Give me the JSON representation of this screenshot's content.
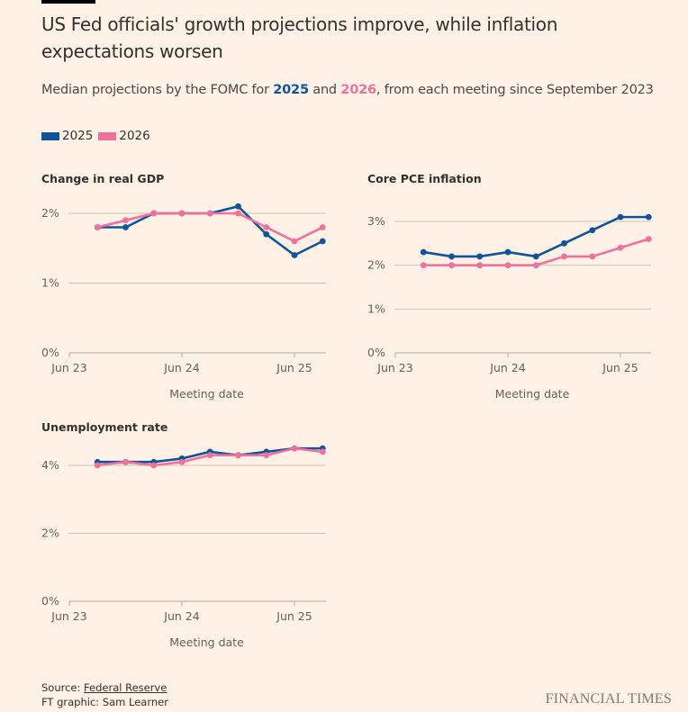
{
  "header": {
    "title": "US Fed officials' growth projections improve, while inflation expectations worsen",
    "subtitle_pre": "Median projections by the FOMC for ",
    "subtitle_2025": "2025",
    "subtitle_and": " and ",
    "subtitle_2026": "2026",
    "subtitle_post": ", from each meeting since September 2023"
  },
  "legend": [
    {
      "label": "2025",
      "color": "#0f5499"
    },
    {
      "label": "2026",
      "color": "#f2709c"
    }
  ],
  "colors": {
    "background": "#fff1e5",
    "series_2025": "#0f5499",
    "series_2026": "#f2709c",
    "gridline": "#ccc1b7"
  },
  "chart_data": [
    {
      "type": "line",
      "title": "Change in real GDP",
      "xlabel": "Meeting date",
      "ylabel": "",
      "x": [
        "2023-09",
        "2023-12",
        "2024-03",
        "2024-06",
        "2024-09",
        "2024-12",
        "2025-03",
        "2025-06",
        "2025-09"
      ],
      "x_ticks": [
        "Jun 23",
        "Jun 24",
        "Jun 25"
      ],
      "y_ticks": [
        "0%",
        "1%",
        "2%"
      ],
      "ylim": [
        0,
        2.2
      ],
      "grid": true,
      "legend": "top-left",
      "series": [
        {
          "name": "2025",
          "values": [
            1.8,
            1.8,
            2.0,
            2.0,
            2.0,
            2.1,
            1.7,
            1.4,
            1.6
          ]
        },
        {
          "name": "2026",
          "values": [
            1.8,
            1.9,
            2.0,
            2.0,
            2.0,
            2.0,
            1.8,
            1.6,
            1.8
          ]
        }
      ]
    },
    {
      "type": "line",
      "title": "Core PCE inflation",
      "xlabel": "Meeting date",
      "ylabel": "",
      "x": [
        "2023-09",
        "2023-12",
        "2024-03",
        "2024-06",
        "2024-09",
        "2024-12",
        "2025-03",
        "2025-06",
        "2025-09"
      ],
      "x_ticks": [
        "Jun 23",
        "Jun 24",
        "Jun 25"
      ],
      "y_ticks": [
        "0%",
        "1%",
        "2%",
        "3%"
      ],
      "ylim": [
        0,
        3.2
      ],
      "grid": true,
      "series": [
        {
          "name": "2025",
          "values": [
            2.3,
            2.2,
            2.2,
            2.3,
            2.2,
            2.5,
            2.8,
            3.1,
            3.1
          ]
        },
        {
          "name": "2026",
          "values": [
            2.0,
            2.0,
            2.0,
            2.0,
            2.0,
            2.2,
            2.2,
            2.4,
            2.6
          ]
        }
      ]
    },
    {
      "type": "line",
      "title": "Unemployment rate",
      "xlabel": "Meeting date",
      "ylabel": "",
      "x": [
        "2023-09",
        "2023-12",
        "2024-03",
        "2024-06",
        "2024-09",
        "2024-12",
        "2025-03",
        "2025-06",
        "2025-09"
      ],
      "x_ticks": [
        "Jun 23",
        "Jun 24",
        "Jun 25"
      ],
      "y_ticks": [
        "0%",
        "2%",
        "4%"
      ],
      "ylim": [
        0,
        4.6
      ],
      "grid": true,
      "series": [
        {
          "name": "2025",
          "values": [
            4.1,
            4.1,
            4.1,
            4.2,
            4.4,
            4.3,
            4.4,
            4.5,
            4.5
          ]
        },
        {
          "name": "2026",
          "values": [
            4.0,
            4.1,
            4.0,
            4.1,
            4.3,
            4.3,
            4.3,
            4.5,
            4.4
          ]
        }
      ]
    }
  ],
  "footer": {
    "source_label": "Source: ",
    "source_link": "Federal Reserve",
    "credit": "FT graphic: Sam Learner",
    "logo": "FINANCIAL TIMES"
  }
}
